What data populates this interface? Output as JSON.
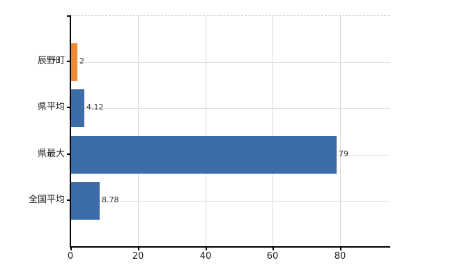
{
  "chart_data": {
    "type": "bar",
    "orientation": "horizontal",
    "title": "",
    "xlabel": "",
    "ylabel": "",
    "categories": [
      "辰野町",
      "県平均",
      "県最大",
      "全国平均"
    ],
    "values": [
      2,
      4.12,
      79,
      8.78
    ],
    "value_labels": [
      "2",
      "4.12",
      "79",
      "8.78"
    ],
    "bar_colors": [
      "#ee8a30",
      "#3c6da9",
      "#3c6da9",
      "#3c6da9"
    ],
    "x_ticks": [
      0,
      20,
      40,
      60,
      80
    ],
    "x_tick_labels": [
      "0",
      "20",
      "40",
      "60",
      "80"
    ],
    "xlim": [
      0,
      94.7
    ],
    "grid": true,
    "legend": false,
    "accent_blue": "#3c6da9",
    "accent_orange": "#ee8a30"
  }
}
